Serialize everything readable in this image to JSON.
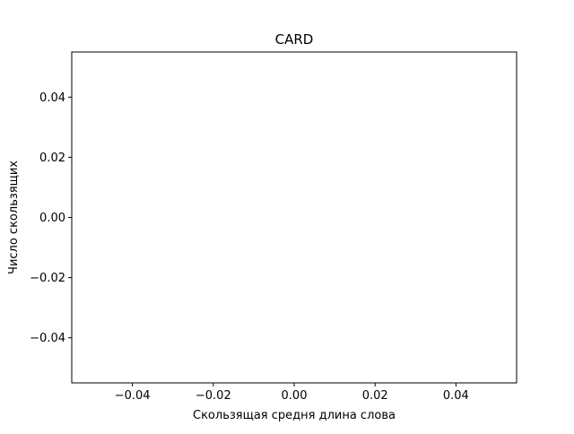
{
  "chart_data": {
    "type": "scatter",
    "title": "CARD",
    "xlabel": "Скользящая средня длина слова",
    "ylabel": "Число скользящих",
    "x": [],
    "y": [],
    "xlim": [
      -0.055,
      0.055
    ],
    "ylim": [
      -0.055,
      0.055
    ],
    "xticks": [
      -0.04,
      -0.02,
      0.0,
      0.02,
      0.04
    ],
    "xtick_labels": [
      "−0.04",
      "−0.02",
      "0.00",
      "0.02",
      "0.04"
    ],
    "yticks": [
      -0.04,
      -0.02,
      0.0,
      0.02,
      0.04
    ],
    "ytick_labels": [
      "−0.04",
      "−0.02",
      "0.00",
      "0.02",
      "0.04"
    ],
    "grid": false,
    "legend": "none"
  },
  "colors": {
    "axes": "#000000",
    "background": "#ffffff"
  }
}
